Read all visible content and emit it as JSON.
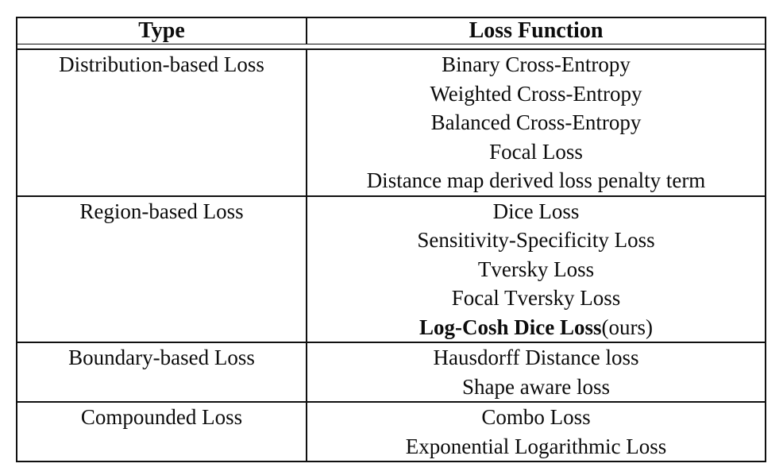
{
  "colors": {
    "border": "#101010",
    "text": "#0c0c0c",
    "background": "#ffffff"
  },
  "table": {
    "headers": {
      "type": "Type",
      "loss_function": "Loss Function"
    },
    "rows": [
      {
        "type": "Distribution-based Loss",
        "losses": [
          "Binary Cross-Entropy",
          "Weighted Cross-Entropy",
          "Balanced Cross-Entropy",
          "Focal Loss",
          "Distance map derived loss penalty term"
        ]
      },
      {
        "type": "Region-based Loss",
        "losses": [
          "Dice Loss",
          "Sensitivity-Specificity Loss",
          "Tversky Loss",
          "Focal Tversky Loss"
        ],
        "highlight": {
          "bold": "Log-Cosh Dice Loss",
          "suffix": "(ours)"
        }
      },
      {
        "type": "Boundary-based Loss",
        "losses": [
          "Hausdorff Distance loss",
          "Shape aware loss"
        ]
      },
      {
        "type": "Compounded Loss",
        "losses": [
          "Combo Loss",
          "Exponential Logarithmic Loss"
        ]
      }
    ]
  }
}
